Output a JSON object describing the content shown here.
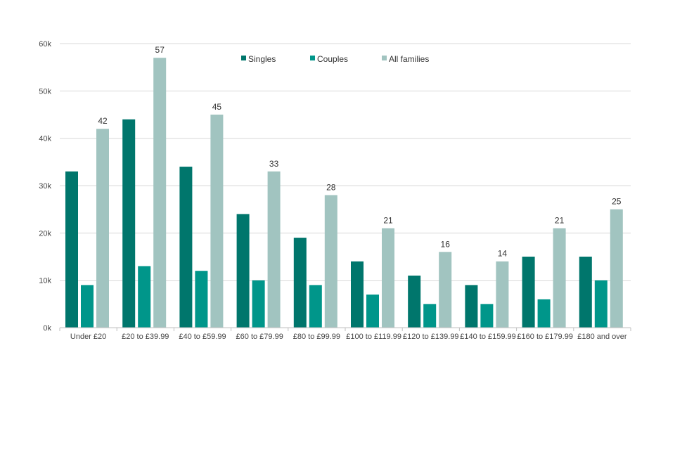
{
  "chart_data": {
    "type": "bar",
    "categories": [
      "Under £20",
      "£20 to £39.99",
      "£40 to £59.99",
      "£60 to £79.99",
      "£80 to £99.99",
      "£100 to £119.99",
      "£120 to £139.99",
      "£140 to £159.99",
      "£160 to £179.99",
      "£180 and over"
    ],
    "series": [
      {
        "name": "Singles",
        "color": "#00766c",
        "values": [
          33,
          44,
          34,
          24,
          19,
          14,
          11,
          9,
          15,
          15
        ]
      },
      {
        "name": "Couples",
        "color": "#00968a",
        "values": [
          9,
          13,
          12,
          10,
          9,
          7,
          5,
          5,
          6,
          10
        ]
      },
      {
        "name": "All families",
        "color": "#a1c4c0",
        "values": [
          42,
          57,
          45,
          33,
          28,
          21,
          16,
          14,
          21,
          25
        ]
      }
    ],
    "data_labels_series": "All families",
    "ylim": [
      0,
      60
    ],
    "yticks": [
      {
        "value": 0,
        "label": "0k"
      },
      {
        "value": 10,
        "label": "10k"
      },
      {
        "value": 20,
        "label": "20k"
      },
      {
        "value": 30,
        "label": "30k"
      },
      {
        "value": 40,
        "label": "40k"
      },
      {
        "value": 50,
        "label": "50k"
      },
      {
        "value": 60,
        "label": "60k"
      }
    ],
    "grid": true,
    "legend_position": "top-center"
  }
}
